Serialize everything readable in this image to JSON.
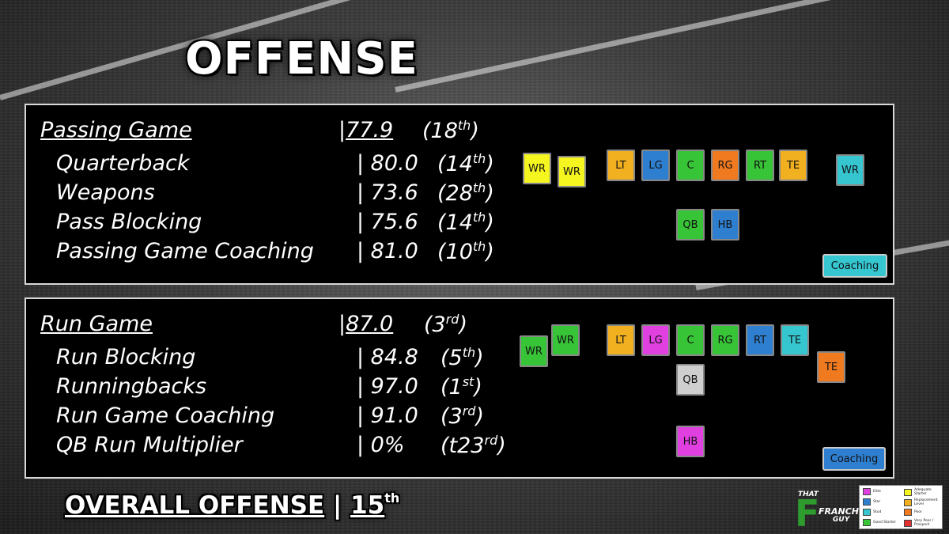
{
  "title": "OFFENSE",
  "passing": {
    "header": {
      "label": "Passing Game",
      "value": "77.9",
      "rank": "(18",
      "rank_suffix": "th",
      "rank_close": ")"
    },
    "rows": [
      {
        "label": "Quarterback",
        "value": "| 80.0",
        "rank": "(14",
        "suffix": "th",
        "close": ")"
      },
      {
        "label": "Weapons",
        "value": "| 73.6",
        "rank": "(28",
        "suffix": "th",
        "close": ")"
      },
      {
        "label": "Pass Blocking",
        "value": "| 75.6",
        "rank": "(14",
        "suffix": "th",
        "close": ")"
      },
      {
        "label": "Passing Game Coaching",
        "value": "| 81.0",
        "rank": "(10",
        "suffix": "th",
        "close": ")"
      }
    ],
    "positions": {
      "wr1": "WR",
      "wr2": "WR",
      "lt": "LT",
      "lg": "LG",
      "c": "C",
      "rg": "RG",
      "rt": "RT",
      "te": "TE",
      "wr3": "WR",
      "qb": "QB",
      "hb": "HB"
    },
    "coaching": "Coaching"
  },
  "run": {
    "header": {
      "label": "Run Game",
      "value": "87.0",
      "rank": "(3",
      "rank_suffix": "rd",
      "rank_close": ")"
    },
    "rows": [
      {
        "label": "Run Blocking",
        "value": "| 84.8",
        "rank": "(5",
        "suffix": "th",
        "close": ")"
      },
      {
        "label": "Runningbacks",
        "value": "| 97.0",
        "rank": "(1",
        "suffix": "st",
        "close": ")"
      },
      {
        "label": "Run Game Coaching",
        "value": "| 91.0",
        "rank": "(3",
        "suffix": "rd",
        "close": ")"
      },
      {
        "label": "QB Run Multiplier",
        "value": "| 0%",
        "rank": "(t23",
        "suffix": "rd",
        "close": ")"
      }
    ],
    "positions": {
      "wr1": "WR",
      "wr2": "WR",
      "lt": "LT",
      "lg": "LG",
      "c": "C",
      "rg": "RG",
      "rt": "RT",
      "te1": "TE",
      "te2": "TE",
      "qb": "QB",
      "hb": "HB"
    },
    "coaching": "Coaching"
  },
  "overall": {
    "label": "OVERALL OFFENSE",
    "sep": " | ",
    "rank": "15",
    "suffix": "th"
  },
  "logo": {
    "that": "THAT",
    "franchise": "FRANCHISE",
    "guy": "GUY",
    "f": "F"
  },
  "legend": [
    {
      "label": "Elite",
      "color": "#e040e0"
    },
    {
      "label": "Star",
      "color": "#2f7fd0"
    },
    {
      "label": "Stud",
      "color": "#35c6d0"
    },
    {
      "label": "Good Starter",
      "color": "#37c437"
    },
    {
      "label": "Adequate Starter",
      "color": "#f5f520"
    },
    {
      "label": "Replacement Level",
      "color": "#f0b020"
    },
    {
      "label": "Poor",
      "color": "#f07a20"
    },
    {
      "label": "Very Poor / Prospect",
      "color": "#e53030"
    }
  ],
  "colors": {
    "elite": "#e040e0",
    "star": "#2f7fd0",
    "stud": "#35c6d0",
    "good": "#37c437",
    "adequate": "#f5f520",
    "replacement": "#f0b020",
    "poor": "#f07a20",
    "neutral": "#cfcfcf"
  }
}
